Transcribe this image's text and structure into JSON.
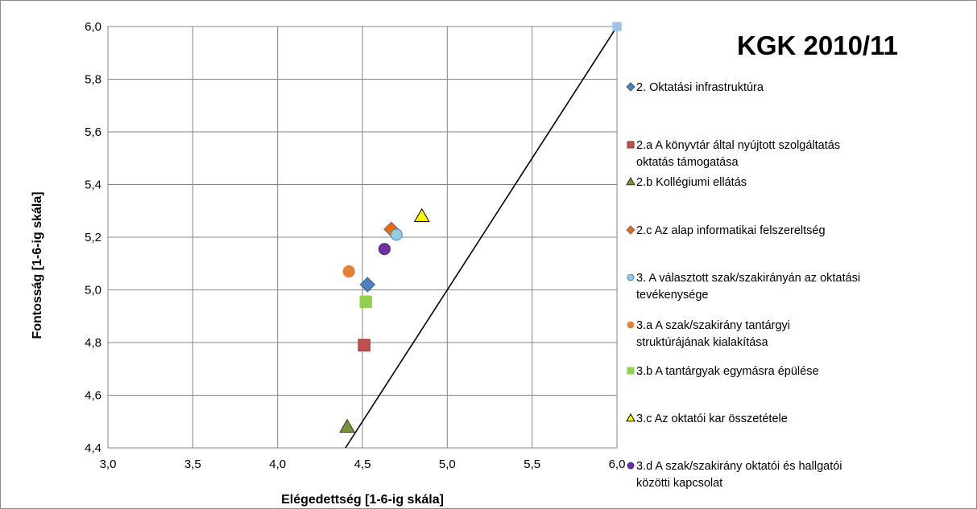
{
  "chart_data": {
    "type": "scatter",
    "title": "KGK 2010/11",
    "xlabel": "Elégedettség [1-6-ig skála]",
    "ylabel": "Fontosság [1-6-ig skála]",
    "xlim": [
      3.0,
      6.0
    ],
    "ylim": [
      4.4,
      6.0
    ],
    "x_ticks": [
      "3,0",
      "3,5",
      "4,0",
      "4,5",
      "5,0",
      "5,5",
      "6,0"
    ],
    "y_ticks": [
      "4,4",
      "4,6",
      "4,8",
      "5,0",
      "5,2",
      "5,4",
      "5,6",
      "5,8",
      "6,0"
    ],
    "grid": true,
    "legend_position": "right",
    "series": [
      {
        "name": "2. Oktatási infrastruktúra",
        "marker": "diamond",
        "color": "#4f81bd",
        "stroke": "#385d8a",
        "x": 4.53,
        "y": 5.02,
        "legend_lines": [
          "2. Oktatási infrastruktúra"
        ]
      },
      {
        "name": "2.a  A könyvtár által nyújtott szolgáltatás oktatás támogatása",
        "marker": "square",
        "color": "#c0504d",
        "stroke": "#8c3836",
        "x": 4.51,
        "y": 4.79,
        "legend_lines": [
          "2.a  A könyvtár által nyújtott szolgáltatás",
          "oktatás támogatása"
        ]
      },
      {
        "name": "2.b  Kollégiumi ellátás",
        "marker": "triangle",
        "color": "#77933c",
        "stroke": "#2e3d17",
        "x": 4.41,
        "y": 4.48,
        "legend_lines": [
          "2.b  Kollégiumi ellátás"
        ]
      },
      {
        "name": "2.c  Az alap informatikai felszereltség",
        "marker": "diamond",
        "color": "#e46c0a",
        "stroke": "#8064a2",
        "x": 4.67,
        "y": 5.23,
        "legend_lines": [
          "2.c  Az alap informatikai felszereltség"
        ]
      },
      {
        "name": "3. A választott szak/szakirányán az oktatási tevékenysége",
        "marker": "circle",
        "color": "#93cddd",
        "stroke": "#4f81bd",
        "x": 4.7,
        "y": 5.21,
        "legend_lines": [
          "3. A választott szak/szakirányán az oktatási",
          "tevékenysége"
        ]
      },
      {
        "name": "3.a  A  szak/szakirány tantárgyi struktúrájának kialakítása",
        "marker": "circle",
        "color": "#e4803a",
        "stroke": "#e4803a",
        "x": 4.42,
        "y": 5.07,
        "legend_lines": [
          "3.a  A  szak/szakirány tantárgyi",
          "struktúrájának kialakítása"
        ]
      },
      {
        "name": "3.b  A tantárgyak egymásra épülése",
        "marker": "square",
        "color": "#92d050",
        "stroke": "#92d050",
        "x": 4.52,
        "y": 4.955,
        "legend_lines": [
          "3.b  A tantárgyak egymásra épülése"
        ]
      },
      {
        "name": "3.c  Az oktatói kar összetétele",
        "marker": "triangle",
        "color": "#ffff00",
        "stroke": "#000000",
        "x": 4.85,
        "y": 5.28,
        "legend_lines": [
          "3.c  Az oktatói kar összetétele"
        ]
      },
      {
        "name": "3.d  A szak/szakirány oktatói és hallgatói közötti kapcsolat",
        "marker": "circle",
        "color": "#7030a0",
        "stroke": "#4b2070",
        "x": 4.63,
        "y": 5.155,
        "legend_lines": [
          "3.d  A szak/szakirány oktatói és hallgatói",
          "közötti kapcsolat"
        ]
      }
    ],
    "extra_points": [
      {
        "marker": "square",
        "color": "#9dc3e6",
        "x": 6.0,
        "y": 6.0
      }
    ],
    "reference_line": {
      "from": [
        4.4,
        4.4
      ],
      "to": [
        6.0,
        6.0
      ],
      "color": "#000000"
    }
  }
}
